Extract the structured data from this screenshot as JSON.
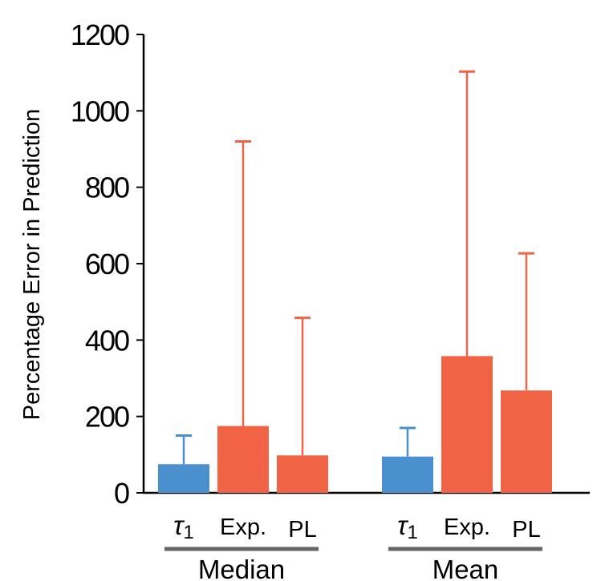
{
  "chart_data": {
    "type": "bar",
    "title": "",
    "xlabel": "",
    "ylabel": "Percentage Error in Prediction",
    "ylim": [
      0,
      1200
    ],
    "yticks": [
      0,
      200,
      400,
      600,
      800,
      1000,
      1200
    ],
    "grid": false,
    "groups": [
      {
        "name": "Median",
        "bars": [
          {
            "label": "τ1",
            "label_base": "τ",
            "label_sub": "1",
            "value": 75,
            "error_upper": 150,
            "color": "#4a8fce"
          },
          {
            "label": "Exp.",
            "value": 175,
            "error_upper": 920,
            "color": "#f06445"
          },
          {
            "label": "PL",
            "value": 98,
            "error_upper": 458,
            "color": "#f06445"
          }
        ]
      },
      {
        "name": "Mean",
        "bars": [
          {
            "label": "τ1",
            "label_base": "τ",
            "label_sub": "1",
            "value": 95,
            "error_upper": 170,
            "color": "#4a8fce"
          },
          {
            "label": "Exp.",
            "value": 358,
            "error_upper": 1103,
            "color": "#f06445"
          },
          {
            "label": "PL",
            "value": 268,
            "error_upper": 627,
            "color": "#f06445"
          }
        ]
      }
    ],
    "colors": {
      "tau": "#4a8fce",
      "model": "#f06445",
      "group_line": "#666666",
      "axis": "#000000"
    }
  }
}
